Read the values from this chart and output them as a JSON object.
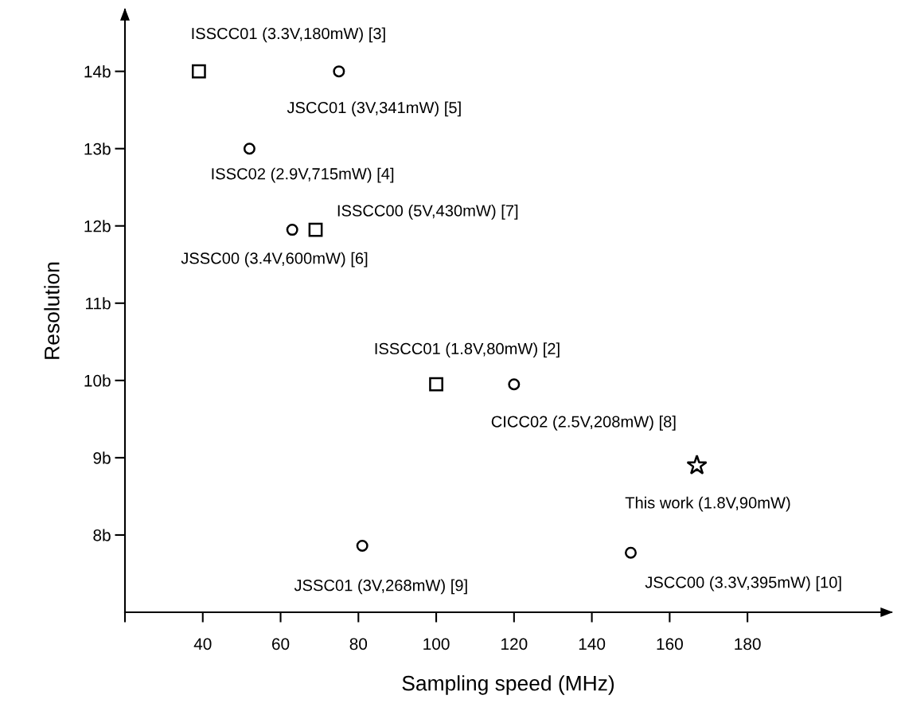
{
  "chart_data": {
    "type": "scatter",
    "xlabel": "Sampling speed (MHz)",
    "ylabel": "Resolution",
    "xlim": [
      20,
      217
    ],
    "xticks": [
      {
        "value": 20,
        "label": null
      },
      40,
      60,
      80,
      100,
      120,
      140,
      160,
      180
    ],
    "ylim": [
      7,
      14.8
    ],
    "yticks": [
      {
        "value": 8,
        "label": "8b"
      },
      {
        "value": 9,
        "label": "9b"
      },
      {
        "value": 10,
        "label": "10b"
      },
      {
        "value": 11,
        "label": "11b"
      },
      {
        "value": 12,
        "label": "12b"
      },
      {
        "value": 13,
        "label": "13b"
      },
      {
        "value": 14,
        "label": "14b"
      }
    ],
    "grid": false,
    "legend": false,
    "series": [
      {
        "marker": "square",
        "color": "#000000",
        "x": [
          39,
          69,
          100
        ],
        "values": [
          14,
          11.95,
          9.95
        ]
      },
      {
        "marker": "circle",
        "color": "#000000",
        "x": [
          75,
          52,
          63,
          120,
          81,
          150
        ],
        "values": [
          14,
          13,
          11.95,
          9.95,
          7.86,
          7.77
        ]
      },
      {
        "marker": "star",
        "color": "#000000",
        "x": [
          167
        ],
        "values": [
          8.9
        ]
      }
    ],
    "annotations": [
      {
        "text": "ISSCC01 (3.3V,180mW) [3]",
        "x": 39,
        "y": 14
      },
      {
        "text": "JSCC01 (3V,341mW) [5]",
        "x": 75,
        "y": 14
      },
      {
        "text": "ISSC02 (2.9V,715mW) [4]",
        "x": 52,
        "y": 13
      },
      {
        "text": "ISSCC00 (5V,430mW) [7]",
        "x": 69,
        "y": 11.95
      },
      {
        "text": "JSSC00 (3.4V,600mW) [6]",
        "x": 63,
        "y": 11.95
      },
      {
        "text": "ISSCC01 (1.8V,80mW) [2]",
        "x": 100,
        "y": 9.95
      },
      {
        "text": "CICC02 (2.5V,208mW) [8]",
        "x": 120,
        "y": 9.95
      },
      {
        "text": "This work (1.8V,90mW)",
        "x": 167,
        "y": 8.9
      },
      {
        "text": "JSSC01 (3V,268mW) [9]",
        "x": 81,
        "y": 7.86
      },
      {
        "text": "JSCC00 (3.3V,395mW) [10]",
        "x": 150,
        "y": 7.77
      }
    ]
  }
}
